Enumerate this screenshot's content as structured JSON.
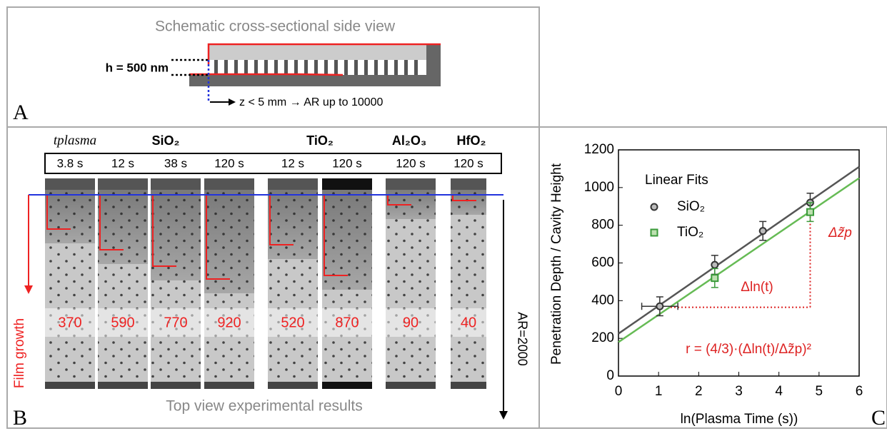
{
  "panel_a": {
    "title": "Schematic cross-sectional side view",
    "h_label": "h = 500 nm",
    "z_label": "z < 5 mm → AR up to 10000",
    "letter": "A"
  },
  "panel_b": {
    "time_label": "tplasma",
    "materials": [
      "SiO₂",
      "TiO₂",
      "Al₂O₃",
      "HfO₂"
    ],
    "times": [
      "3.8 s",
      "12 s",
      "38 s",
      "120 s",
      "12 s",
      "120 s",
      "120 s",
      "120 s"
    ],
    "depths": [
      "370",
      "590",
      "770",
      "920",
      "520",
      "870",
      "90",
      "40"
    ],
    "growth_label": "Film growth",
    "ar_label": "AR=2000",
    "caption": "Top view experimental results",
    "letter": "B"
  },
  "chart_data": {
    "type": "scatter",
    "xlabel": "ln(Plasma Time (s))",
    "ylabel": "Penetration Depth / Cavity Height",
    "xlim": [
      0,
      6
    ],
    "ylim": [
      0,
      1200
    ],
    "xticks": [
      0,
      1,
      2,
      3,
      4,
      5,
      6
    ],
    "yticks": [
      0,
      200,
      400,
      600,
      800,
      1000,
      1200
    ],
    "legend_title": "Linear Fits",
    "legend": "upper left",
    "series": [
      {
        "name": "SiO₂",
        "color": "#333333",
        "marker": "circle",
        "x": [
          1.03,
          2.4,
          3.6,
          4.78
        ],
        "values": [
          370,
          590,
          770,
          920
        ],
        "yerr": [
          50,
          50,
          50,
          50
        ],
        "xerr": [
          0.45,
          null,
          null,
          null
        ]
      },
      {
        "name": "TiO₂",
        "color": "#3a9a3a",
        "marker": "square",
        "x": [
          2.4,
          4.78
        ],
        "values": [
          520,
          870
        ],
        "yerr": [
          50,
          50
        ],
        "xerr": [
          null,
          null
        ]
      }
    ],
    "fits": [
      {
        "color": "#555555",
        "x": [
          0,
          6
        ],
        "values": [
          225,
          1110
        ]
      },
      {
        "color": "#66bb55",
        "x": [
          0,
          6
        ],
        "values": [
          180,
          1050
        ]
      }
    ],
    "annotations": {
      "dln": "Δln(t)",
      "dz": "Δz̃p",
      "formula": "r = (4/3)·(Δln(t)/Δz̃p)²"
    },
    "guide": {
      "x": [
        1.3,
        4.78
      ],
      "y": [
        365,
        870
      ]
    },
    "letter": "C"
  }
}
